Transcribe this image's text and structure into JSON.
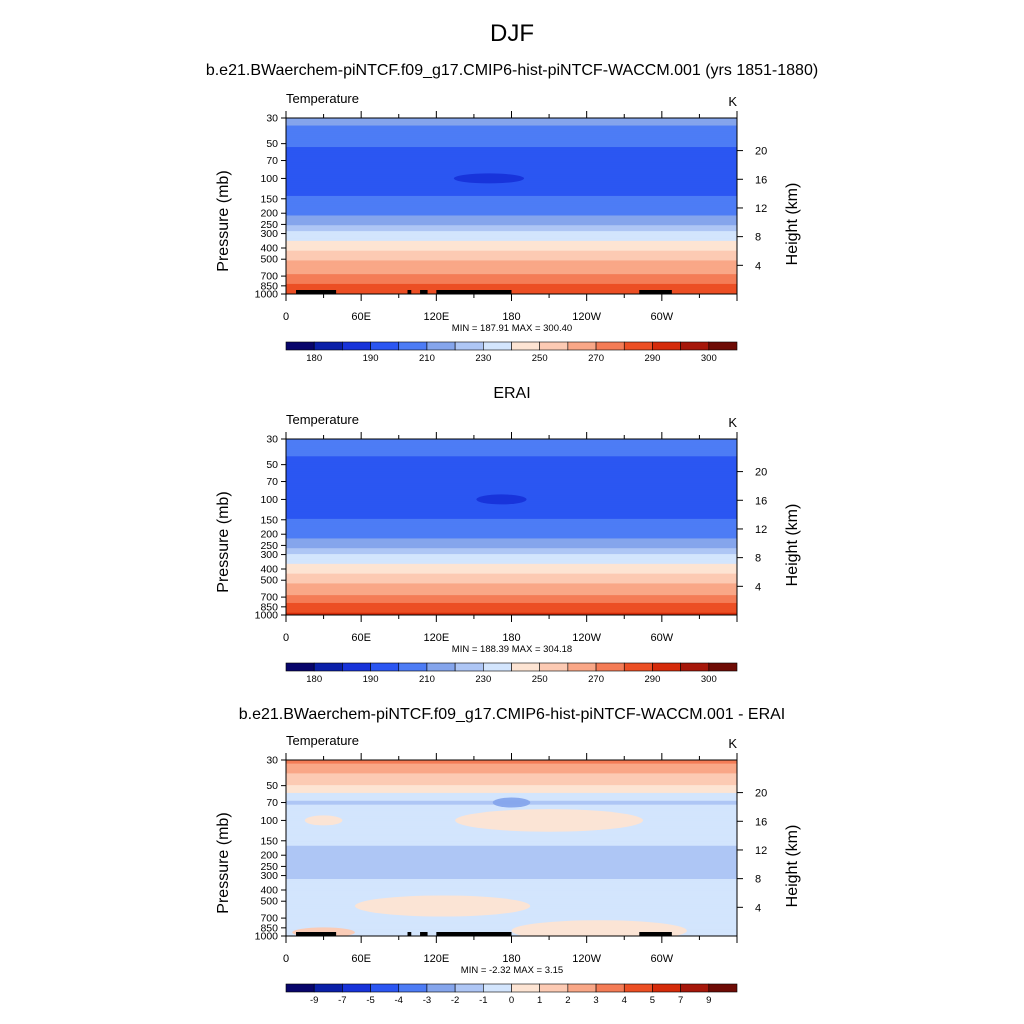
{
  "figure": {
    "title": "DJF"
  },
  "chart_data": [
    {
      "type": "heatmap",
      "title": "b.e21.BWaerchem-piNTCF.f09_g17.CMIP6-hist-piNTCF-WACCM.001 (yrs 1851-1880)",
      "variable": "Temperature",
      "units": "K",
      "ylabel": "Pressure (mb)",
      "ylabel_right": "Height (km)",
      "xlabel": "",
      "x_ticks": [
        "0",
        "60E",
        "120E",
        "180",
        "120W",
        "60W"
      ],
      "y_ticks": [
        "30",
        "50",
        "70",
        "100",
        "150",
        "200",
        "250",
        "300",
        "400",
        "500",
        "700",
        "850",
        "1000"
      ],
      "y_ticks_right": [
        "20",
        "16",
        "12",
        "8",
        "4"
      ],
      "y_values": [
        30,
        50,
        70,
        100,
        150,
        200,
        250,
        300,
        400,
        500,
        700,
        850,
        1000
      ],
      "ylim": [
        30,
        1000
      ],
      "xlim": [
        0,
        360
      ],
      "min": 187.91,
      "max": 300.4,
      "stats_text": "MIN = 187.91  MAX = 300.40",
      "profile": [
        {
          "p": 30,
          "value": 213
        },
        {
          "p": 40,
          "value": 208
        },
        {
          "p": 50,
          "value": 202
        },
        {
          "p": 60,
          "value": 197
        },
        {
          "p": 70,
          "value": 196
        },
        {
          "p": 100,
          "value": 195
        },
        {
          "p": 130,
          "value": 196
        },
        {
          "p": 150,
          "value": 202
        },
        {
          "p": 200,
          "value": 208
        },
        {
          "p": 250,
          "value": 218
        },
        {
          "p": 300,
          "value": 232
        },
        {
          "p": 400,
          "value": 247
        },
        {
          "p": 500,
          "value": 258
        },
        {
          "p": 700,
          "value": 272
        },
        {
          "p": 850,
          "value": 281
        },
        {
          "p": 1000,
          "value": 291
        }
      ],
      "features": [
        {
          "kind": "min-cell",
          "lon": 162,
          "p": 100,
          "width_deg": 56,
          "value": 187.9,
          "label": "minimum near 100 mb, 130E-190E"
        }
      ],
      "land_mask_lons": [
        [
          8,
          40
        ],
        [
          97,
          100
        ],
        [
          107,
          113
        ],
        [
          120,
          180
        ],
        [
          282,
          308
        ]
      ],
      "colorbar": {
        "labels": [
          "180",
          "190",
          "210",
          "230",
          "250",
          "270",
          "290",
          "300"
        ],
        "levels": [
          175,
          180,
          185,
          190,
          200,
          210,
          220,
          230,
          240,
          250,
          260,
          270,
          280,
          290,
          295,
          300
        ],
        "colors": [
          "#08056b",
          "#0a1fa8",
          "#1733d9",
          "#2b56f2",
          "#4d7cf5",
          "#85a5ec",
          "#aec6f5",
          "#d3e5fd",
          "#fde4d3",
          "#fccab3",
          "#f9a787",
          "#f47c56",
          "#ec4f24",
          "#d52b0a",
          "#a6170a",
          "#6e0b05"
        ]
      }
    },
    {
      "type": "heatmap",
      "title": "ERAI",
      "variable": "Temperature",
      "units": "K",
      "ylabel": "Pressure (mb)",
      "ylabel_right": "Height (km)",
      "xlabel": "",
      "x_ticks": [
        "0",
        "60E",
        "120E",
        "180",
        "120W",
        "60W"
      ],
      "y_ticks": [
        "30",
        "50",
        "70",
        "100",
        "150",
        "200",
        "250",
        "300",
        "400",
        "500",
        "700",
        "850",
        "1000"
      ],
      "y_ticks_right": [
        "20",
        "16",
        "12",
        "8",
        "4"
      ],
      "y_values": [
        30,
        50,
        70,
        100,
        150,
        200,
        250,
        300,
        400,
        500,
        700,
        850,
        1000
      ],
      "ylim": [
        30,
        1000
      ],
      "xlim": [
        0,
        360
      ],
      "min": 188.39,
      "max": 304.18,
      "stats_text": "MIN = 188.39  MAX = 304.18",
      "profile": [
        {
          "p": 30,
          "value": 205
        },
        {
          "p": 40,
          "value": 201
        },
        {
          "p": 50,
          "value": 198
        },
        {
          "p": 60,
          "value": 196
        },
        {
          "p": 70,
          "value": 195
        },
        {
          "p": 100,
          "value": 194
        },
        {
          "p": 130,
          "value": 196
        },
        {
          "p": 150,
          "value": 201
        },
        {
          "p": 200,
          "value": 207
        },
        {
          "p": 250,
          "value": 216
        },
        {
          "p": 300,
          "value": 230
        },
        {
          "p": 400,
          "value": 246
        },
        {
          "p": 500,
          "value": 257
        },
        {
          "p": 700,
          "value": 272
        },
        {
          "p": 850,
          "value": 283
        },
        {
          "p": 1000,
          "value": 292
        }
      ],
      "features": [
        {
          "kind": "min-cell",
          "lon": 172,
          "p": 100,
          "width_deg": 40,
          "value": 188.4,
          "label": "minimum near 100 mb, 150E-190E"
        }
      ],
      "land_mask_lons": [],
      "colorbar": {
        "labels": [
          "180",
          "190",
          "210",
          "230",
          "250",
          "270",
          "290",
          "300"
        ],
        "levels": [
          175,
          180,
          185,
          190,
          200,
          210,
          220,
          230,
          240,
          250,
          260,
          270,
          280,
          290,
          295,
          300
        ],
        "colors": [
          "#08056b",
          "#0a1fa8",
          "#1733d9",
          "#2b56f2",
          "#4d7cf5",
          "#85a5ec",
          "#aec6f5",
          "#d3e5fd",
          "#fde4d3",
          "#fccab3",
          "#f9a787",
          "#f47c56",
          "#ec4f24",
          "#d52b0a",
          "#a6170a",
          "#6e0b05"
        ]
      }
    },
    {
      "type": "heatmap",
      "title": "b.e21.BWaerchem-piNTCF.f09_g17.CMIP6-hist-piNTCF-WACCM.001 - ERAI",
      "variable": "Temperature",
      "units": "K",
      "ylabel": "Pressure (mb)",
      "ylabel_right": "Height (km)",
      "xlabel": "",
      "x_ticks": [
        "0",
        "60E",
        "120E",
        "180",
        "120W",
        "60W"
      ],
      "y_ticks": [
        "30",
        "50",
        "70",
        "100",
        "150",
        "200",
        "250",
        "300",
        "400",
        "500",
        "700",
        "850",
        "1000"
      ],
      "y_ticks_right": [
        "20",
        "16",
        "12",
        "8",
        "4"
      ],
      "y_values": [
        30,
        50,
        70,
        100,
        150,
        200,
        250,
        300,
        400,
        500,
        700,
        850,
        1000
      ],
      "ylim": [
        30,
        1000
      ],
      "xlim": [
        0,
        360
      ],
      "min": -2.32,
      "max": 3.15,
      "stats_text": "MIN =  -2.32  MAX =   3.15",
      "profile": [
        {
          "p": 30,
          "value": 3.5
        },
        {
          "p": 35,
          "value": 2.5
        },
        {
          "p": 45,
          "value": 1.5
        },
        {
          "p": 55,
          "value": 0.3
        },
        {
          "p": 65,
          "value": -0.5
        },
        {
          "p": 70,
          "value": -1.5
        },
        {
          "p": 80,
          "value": -0.5
        },
        {
          "p": 150,
          "value": -0.5
        },
        {
          "p": 180,
          "value": -1.5
        },
        {
          "p": 300,
          "value": -1.5
        },
        {
          "p": 350,
          "value": -0.5
        },
        {
          "p": 1000,
          "value": -0.5
        }
      ],
      "features": [
        {
          "kind": "blob",
          "lon": 180,
          "p": 70,
          "width_deg": 30,
          "value": -2.5,
          "label": "negative cell near 70 mb"
        },
        {
          "kind": "blob",
          "lon": 30,
          "p": 100,
          "width_deg": 30,
          "value": 0.5,
          "label": "warm patch 100 mb"
        },
        {
          "kind": "blob",
          "lon": 210,
          "p": 100,
          "width_deg": 150,
          "value": 0.5,
          "label": "warm band 100 mb"
        },
        {
          "kind": "blob",
          "lon": 125,
          "p": 550,
          "width_deg": 140,
          "value": 0.5,
          "label": "warm dome mid-troposphere"
        },
        {
          "kind": "blob",
          "lon": 250,
          "p": 900,
          "width_deg": 140,
          "value": 0.5,
          "label": "warm patch lower troposphere"
        },
        {
          "kind": "blob",
          "lon": 30,
          "p": 930,
          "width_deg": 50,
          "value": 1.5,
          "label": "surface warm patch"
        }
      ],
      "land_mask_lons": [
        [
          8,
          40
        ],
        [
          97,
          100
        ],
        [
          107,
          113
        ],
        [
          120,
          180
        ],
        [
          282,
          308
        ]
      ],
      "colorbar": {
        "labels": [
          "-9",
          "-7",
          "-5",
          "-4",
          "-3",
          "-2",
          "-1",
          "0",
          "1",
          "2",
          "3",
          "4",
          "5",
          "7",
          "9"
        ],
        "levels": [
          -11,
          -9,
          -7,
          -5,
          -4,
          -3,
          -2,
          -1,
          0,
          1,
          2,
          3,
          4,
          5,
          7,
          9
        ],
        "colors": [
          "#08056b",
          "#0a1fa8",
          "#1733d9",
          "#2b56f2",
          "#4d7cf5",
          "#85a5ec",
          "#aec6f5",
          "#d3e5fd",
          "#fde4d3",
          "#fccab3",
          "#f9a787",
          "#f47c56",
          "#ec4f24",
          "#d52b0a",
          "#a6170a",
          "#6e0b05"
        ]
      }
    }
  ]
}
